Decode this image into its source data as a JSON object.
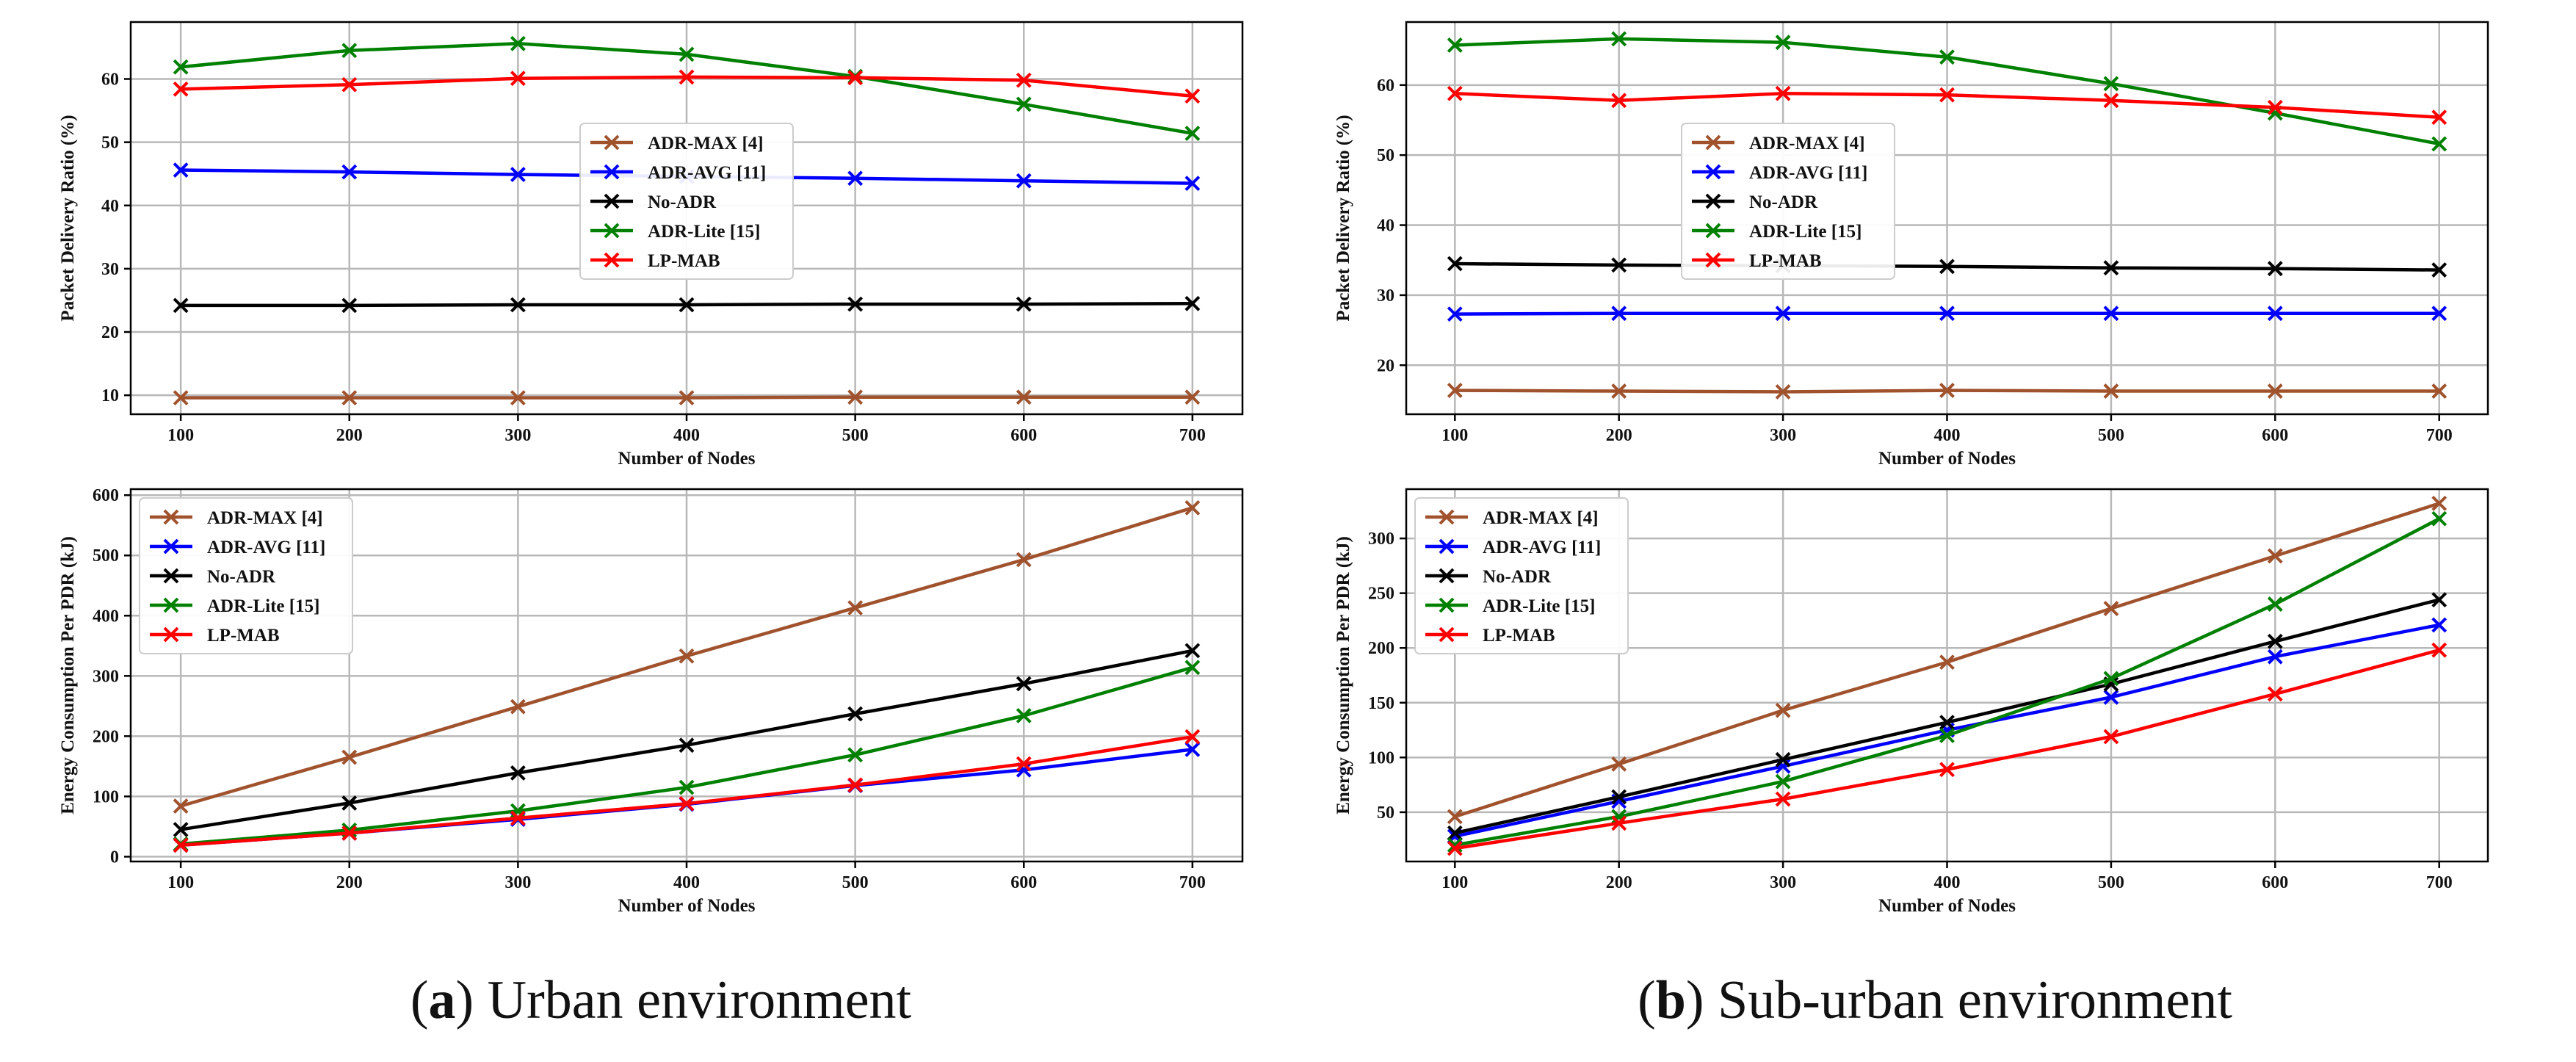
{
  "captions": {
    "a_letter": "a",
    "a_text": " Urban environment",
    "b_letter": "b",
    "b_text": " Sub-urban environment"
  },
  "chart_data": [
    {
      "id": "urban-pdr",
      "type": "line",
      "xlabel": "Number of Nodes",
      "ylabel": "Packet Delivery Ratio (%)",
      "x": [
        100,
        200,
        300,
        400,
        500,
        600,
        700
      ],
      "ylim": [
        7,
        69
      ],
      "yticks": [
        10,
        20,
        30,
        40,
        50,
        60
      ],
      "grid": true,
      "legend": "center",
      "series": [
        {
          "name": "ADR-MAX  [4]",
          "color": "#a0522d",
          "values": [
            9.6,
            9.6,
            9.6,
            9.6,
            9.7,
            9.7,
            9.7
          ]
        },
        {
          "name": "ADR-AVG [11]",
          "color": "#0000ff",
          "values": [
            45.6,
            45.3,
            44.9,
            44.6,
            44.3,
            43.9,
            43.5
          ]
        },
        {
          "name": "No-ADR",
          "color": "#000000",
          "values": [
            24.2,
            24.2,
            24.3,
            24.3,
            24.4,
            24.4,
            24.5
          ]
        },
        {
          "name": "ADR-Lite [15]",
          "color": "#008000",
          "values": [
            61.9,
            64.5,
            65.6,
            63.9,
            60.4,
            56.0,
            51.4
          ]
        },
        {
          "name": "LP-MAB",
          "color": "#ff0000",
          "values": [
            58.4,
            59.1,
            60.1,
            60.3,
            60.2,
            59.8,
            57.3
          ]
        }
      ]
    },
    {
      "id": "suburban-pdr",
      "type": "line",
      "xlabel": "Number of Nodes",
      "ylabel": "Packet Delivery Ratio (%)",
      "x": [
        100,
        200,
        300,
        400,
        500,
        600,
        700
      ],
      "ylim": [
        13,
        69
      ],
      "yticks": [
        20,
        30,
        40,
        50,
        60
      ],
      "grid": true,
      "legend": "top-center",
      "series": [
        {
          "name": "ADR-MAX  [4]",
          "color": "#a0522d",
          "values": [
            16.4,
            16.3,
            16.2,
            16.4,
            16.3,
            16.3,
            16.3
          ]
        },
        {
          "name": "ADR-AVG [11]",
          "color": "#0000ff",
          "values": [
            27.3,
            27.4,
            27.4,
            27.4,
            27.4,
            27.4,
            27.4
          ]
        },
        {
          "name": "No-ADR",
          "color": "#000000",
          "values": [
            34.5,
            34.3,
            34.2,
            34.1,
            33.9,
            33.8,
            33.6
          ]
        },
        {
          "name": "ADR-Lite [15]",
          "color": "#008000",
          "values": [
            65.7,
            66.6,
            66.1,
            64.0,
            60.2,
            56.0,
            51.6
          ]
        },
        {
          "name": "LP-MAB",
          "color": "#ff0000",
          "values": [
            58.8,
            57.8,
            58.8,
            58.6,
            57.8,
            56.8,
            55.4
          ]
        }
      ]
    },
    {
      "id": "urban-energy",
      "type": "line",
      "xlabel": "Number of Nodes",
      "ylabel": "Energy Consumption Per PDR (kJ)",
      "x": [
        100,
        200,
        300,
        400,
        500,
        600,
        700
      ],
      "ylim": [
        -8,
        610
      ],
      "yticks": [
        0,
        100,
        200,
        300,
        400,
        500,
        600
      ],
      "grid": true,
      "legend": "top-left",
      "series": [
        {
          "name": "ADR-MAX  [4]",
          "color": "#a0522d",
          "values": [
            84,
            165,
            249,
            333,
            413,
            493,
            579
          ]
        },
        {
          "name": "ADR-AVG [11]",
          "color": "#0000ff",
          "values": [
            19,
            39,
            62,
            87,
            118,
            144,
            178
          ]
        },
        {
          "name": "No-ADR",
          "color": "#000000",
          "values": [
            45,
            89,
            139,
            185,
            237,
            287,
            342
          ]
        },
        {
          "name": "ADR-Lite [15]",
          "color": "#008000",
          "values": [
            21,
            44,
            76,
            115,
            169,
            234,
            314
          ]
        },
        {
          "name": "LP-MAB",
          "color": "#ff0000",
          "values": [
            19,
            39,
            64,
            88,
            119,
            154,
            199
          ]
        }
      ]
    },
    {
      "id": "suburban-energy",
      "type": "line",
      "xlabel": "Number of Nodes",
      "ylabel": "Energy Consumption Per PDR (kJ)",
      "x": [
        100,
        200,
        300,
        400,
        500,
        600,
        700
      ],
      "ylim": [
        5,
        345
      ],
      "yticks": [
        50,
        100,
        150,
        200,
        250,
        300
      ],
      "grid": true,
      "legend": "top-left",
      "series": [
        {
          "name": "ADR-MAX  [4]",
          "color": "#a0522d",
          "values": [
            46,
            94,
            143,
            187,
            236,
            284,
            332
          ]
        },
        {
          "name": "ADR-AVG [11]",
          "color": "#0000ff",
          "values": [
            28,
            60,
            92,
            125,
            155,
            192,
            221
          ]
        },
        {
          "name": "No-ADR",
          "color": "#000000",
          "values": [
            31,
            64,
            98,
            132,
            167,
            206,
            244
          ]
        },
        {
          "name": "ADR-Lite [15]",
          "color": "#008000",
          "values": [
            20,
            46,
            78,
            120,
            172,
            240,
            318
          ]
        },
        {
          "name": "LP-MAB",
          "color": "#ff0000",
          "values": [
            17,
            40,
            62,
            89,
            119,
            158,
            198
          ]
        }
      ]
    }
  ]
}
